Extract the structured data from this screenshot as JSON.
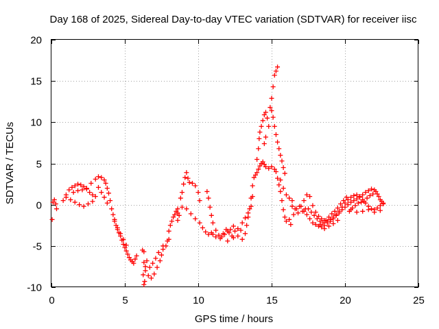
{
  "chart_data": {
    "type": "scatter",
    "title": "Day 168 of 2025, Sidereal Day-to-day VTEC variation (SDTVAR) for receiver iisc",
    "xlabel": "GPS time / hours",
    "ylabel": "SDTVAR / TECUs",
    "xlim": [
      0,
      25
    ],
    "ylim": [
      -10,
      20
    ],
    "x_ticks": [
      "0",
      "5",
      "10",
      "15",
      "20",
      "25"
    ],
    "y_ticks": [
      "-10",
      "-5",
      "0",
      "5",
      "10",
      "15",
      "20"
    ],
    "grid": true,
    "marker": "+",
    "color": "#ff0000",
    "series": [
      {
        "name": "SDTVAR",
        "points": [
          [
            0.05,
            -1.8
          ],
          [
            0.1,
            0.3
          ],
          [
            0.2,
            0.6
          ],
          [
            0.3,
            0.1
          ],
          [
            0.35,
            -0.5
          ],
          [
            0.8,
            0.5
          ],
          [
            1.0,
            1.2
          ],
          [
            1.2,
            1.8
          ],
          [
            1.4,
            2.1
          ],
          [
            1.6,
            2.3
          ],
          [
            1.8,
            2.5
          ],
          [
            2.0,
            2.4
          ],
          [
            2.2,
            2.2
          ],
          [
            2.4,
            1.9
          ],
          [
            2.6,
            1.5
          ],
          [
            2.8,
            1.2
          ],
          [
            3.0,
            1.0
          ],
          [
            1.0,
            0.9
          ],
          [
            1.3,
            0.6
          ],
          [
            1.6,
            0.3
          ],
          [
            1.9,
            0.0
          ],
          [
            2.2,
            -0.2
          ],
          [
            2.5,
            0.1
          ],
          [
            2.8,
            0.4
          ],
          [
            1.5,
            1.5
          ],
          [
            1.8,
            1.7
          ],
          [
            2.1,
            1.8
          ],
          [
            2.4,
            2.0
          ],
          [
            2.7,
            2.6
          ],
          [
            3.0,
            3.1
          ],
          [
            3.2,
            3.4
          ],
          [
            3.4,
            3.3
          ],
          [
            3.6,
            3.0
          ],
          [
            3.7,
            2.6
          ],
          [
            3.8,
            2.0
          ],
          [
            3.9,
            1.4
          ],
          [
            4.0,
            0.5
          ],
          [
            3.2,
            2.1
          ],
          [
            3.4,
            1.5
          ],
          [
            3.6,
            0.9
          ],
          [
            3.8,
            0.2
          ],
          [
            4.1,
            -0.5
          ],
          [
            4.2,
            -1.2
          ],
          [
            4.3,
            -1.8
          ],
          [
            4.4,
            -2.5
          ],
          [
            4.5,
            -3.0
          ],
          [
            4.6,
            -3.4
          ],
          [
            4.7,
            -3.8
          ],
          [
            4.8,
            -4.3
          ],
          [
            4.9,
            -4.8
          ],
          [
            5.0,
            -5.2
          ],
          [
            5.1,
            -5.6
          ],
          [
            5.2,
            -6.0
          ],
          [
            5.3,
            -6.4
          ],
          [
            5.4,
            -6.7
          ],
          [
            5.5,
            -6.9
          ],
          [
            5.6,
            -7.1
          ],
          [
            5.7,
            -6.6
          ],
          [
            5.8,
            -6.2
          ],
          [
            4.3,
            -2.0
          ],
          [
            4.5,
            -2.8
          ],
          [
            4.7,
            -3.5
          ],
          [
            4.9,
            -4.2
          ],
          [
            5.1,
            -4.9
          ],
          [
            6.2,
            -5.5
          ],
          [
            6.3,
            -5.7
          ],
          [
            6.3,
            -7.0
          ],
          [
            6.25,
            -8.5
          ],
          [
            6.3,
            -9.7
          ],
          [
            6.35,
            -9.3
          ],
          [
            6.4,
            -8.0
          ],
          [
            6.5,
            -6.8
          ],
          [
            6.4,
            -7.5
          ],
          [
            6.6,
            -8.6
          ],
          [
            6.8,
            -8.9
          ],
          [
            7.0,
            -8.4
          ],
          [
            7.2,
            -7.6
          ],
          [
            7.4,
            -6.8
          ],
          [
            7.5,
            -6.1
          ],
          [
            7.6,
            -5.4
          ],
          [
            7.8,
            -5.0
          ],
          [
            8.0,
            -4.2
          ],
          [
            6.7,
            -7.6
          ],
          [
            6.9,
            -7.1
          ],
          [
            7.1,
            -6.5
          ],
          [
            7.3,
            -5.8
          ],
          [
            7.6,
            -5.0
          ],
          [
            7.9,
            -4.4
          ],
          [
            8.0,
            -3.2
          ],
          [
            8.1,
            -2.5
          ],
          [
            8.2,
            -2.0
          ],
          [
            8.3,
            -1.5
          ],
          [
            8.4,
            -1.2
          ],
          [
            8.5,
            -0.8
          ],
          [
            8.6,
            -0.5
          ],
          [
            8.7,
            -1.3
          ],
          [
            8.6,
            -1.9
          ],
          [
            8.8,
            0.8
          ],
          [
            8.9,
            1.5
          ],
          [
            9.0,
            2.5
          ],
          [
            9.1,
            3.3
          ],
          [
            9.2,
            3.9
          ],
          [
            9.3,
            3.2
          ],
          [
            9.4,
            2.7
          ],
          [
            9.6,
            2.6
          ],
          [
            9.8,
            2.3
          ],
          [
            10.0,
            1.5
          ],
          [
            10.1,
            0.5
          ],
          [
            8.6,
            -1.0
          ],
          [
            8.9,
            -0.3
          ],
          [
            9.2,
            -0.5
          ],
          [
            9.5,
            -1.1
          ],
          [
            9.8,
            -1.7
          ],
          [
            10.1,
            -2.2
          ],
          [
            10.3,
            -2.8
          ],
          [
            10.5,
            -3.3
          ],
          [
            10.7,
            -3.6
          ],
          [
            10.9,
            -3.4
          ],
          [
            10.6,
            1.6
          ],
          [
            10.7,
            0.8
          ],
          [
            10.8,
            -0.3
          ],
          [
            10.9,
            -1.3
          ],
          [
            11.0,
            -2.2
          ],
          [
            11.2,
            -3.1
          ],
          [
            11.4,
            -3.7
          ],
          [
            11.6,
            -3.9
          ],
          [
            11.8,
            -3.6
          ],
          [
            12.0,
            -3.2
          ],
          [
            12.2,
            -3.0
          ],
          [
            12.4,
            -2.6
          ],
          [
            11.0,
            -3.6
          ],
          [
            11.2,
            -3.9
          ],
          [
            11.5,
            -4.1
          ],
          [
            11.7,
            -3.5
          ],
          [
            11.9,
            -3.0
          ],
          [
            12.1,
            -3.4
          ],
          [
            12.3,
            -3.8
          ],
          [
            12.5,
            -3.2
          ],
          [
            12.7,
            -2.9
          ],
          [
            12.9,
            -3.1
          ],
          [
            12.0,
            -4.4
          ],
          [
            12.4,
            -4.0
          ],
          [
            12.7,
            -3.8
          ],
          [
            13.0,
            -4.2
          ],
          [
            13.2,
            -3.5
          ],
          [
            13.3,
            -2.5
          ],
          [
            13.4,
            -1.5
          ],
          [
            13.5,
            -0.5
          ],
          [
            13.6,
            0.8
          ],
          [
            13.7,
            2.3
          ],
          [
            13.8,
            3.3
          ],
          [
            13.0,
            -2.2
          ],
          [
            13.2,
            -1.6
          ],
          [
            13.4,
            -1.0
          ],
          [
            13.6,
            -0.2
          ],
          [
            13.7,
            1.0
          ],
          [
            13.9,
            3.6
          ],
          [
            14.0,
            3.9
          ],
          [
            14.1,
            4.3
          ],
          [
            14.2,
            4.7
          ],
          [
            14.3,
            5.0
          ],
          [
            14.4,
            5.2
          ],
          [
            14.5,
            4.9
          ],
          [
            14.6,
            4.6
          ],
          [
            14.8,
            4.4
          ],
          [
            15.0,
            4.6
          ],
          [
            15.2,
            4.3
          ],
          [
            14.0,
            5.5
          ],
          [
            14.1,
            6.8
          ],
          [
            14.15,
            8.0
          ],
          [
            14.2,
            8.8
          ],
          [
            14.3,
            9.5
          ],
          [
            14.4,
            10.2
          ],
          [
            14.5,
            10.9
          ],
          [
            14.6,
            11.2
          ],
          [
            14.7,
            10.5
          ],
          [
            14.8,
            9.5
          ],
          [
            14.6,
            8.2
          ],
          [
            14.5,
            7.4
          ],
          [
            14.9,
            11.8
          ],
          [
            15.0,
            12.9
          ],
          [
            15.1,
            14.3
          ],
          [
            15.2,
            15.7
          ],
          [
            15.3,
            16.2
          ],
          [
            15.4,
            16.7
          ],
          [
            15.0,
            11.4
          ],
          [
            15.1,
            10.6
          ],
          [
            15.2,
            9.5
          ],
          [
            15.3,
            8.5
          ],
          [
            15.4,
            7.6
          ],
          [
            15.5,
            6.8
          ],
          [
            15.6,
            6.0
          ],
          [
            15.7,
            5.3
          ],
          [
            15.8,
            4.5
          ],
          [
            15.9,
            3.8
          ],
          [
            15.3,
            4.0
          ],
          [
            15.4,
            3.2
          ],
          [
            15.5,
            2.4
          ],
          [
            15.6,
            1.6
          ],
          [
            15.7,
            0.5
          ],
          [
            15.8,
            -0.6
          ],
          [
            15.9,
            -1.5
          ],
          [
            16.0,
            -2.0
          ],
          [
            15.6,
            3.0
          ],
          [
            15.8,
            2.0
          ],
          [
            16.0,
            1.2
          ],
          [
            16.2,
            0.8
          ],
          [
            16.4,
            0.5
          ],
          [
            16.2,
            -1.8
          ],
          [
            16.3,
            -2.4
          ],
          [
            16.5,
            -1.2
          ],
          [
            16.7,
            -0.5
          ],
          [
            16.9,
            -0.2
          ],
          [
            17.1,
            -0.8
          ],
          [
            17.3,
            -0.5
          ],
          [
            16.4,
            -0.2
          ],
          [
            16.6,
            -0.5
          ],
          [
            16.8,
            -1.0
          ],
          [
            17.0,
            -0.2
          ],
          [
            17.2,
            0.5
          ],
          [
            17.4,
            1.2
          ],
          [
            17.6,
            1.0
          ],
          [
            17.8,
            -0.1
          ],
          [
            18.0,
            -0.9
          ],
          [
            18.2,
            -1.4
          ],
          [
            18.4,
            -1.7
          ],
          [
            18.6,
            -1.9
          ],
          [
            18.8,
            -2.0
          ],
          [
            19.0,
            -1.8
          ],
          [
            19.2,
            -1.5
          ],
          [
            19.4,
            -1.2
          ],
          [
            19.6,
            -0.8
          ],
          [
            19.8,
            -0.3
          ],
          [
            20.0,
            0.2
          ],
          [
            20.2,
            0.6
          ],
          [
            20.4,
            0.9
          ],
          [
            20.6,
            1.1
          ],
          [
            20.8,
            1.2
          ],
          [
            21.0,
            1.0
          ],
          [
            21.2,
            0.6
          ],
          [
            21.4,
            0.2
          ],
          [
            21.6,
            -0.2
          ],
          [
            21.8,
            -0.5
          ],
          [
            22.0,
            -0.6
          ],
          [
            22.2,
            -0.4
          ],
          [
            22.4,
            -0.1
          ],
          [
            22.6,
            0.2
          ],
          [
            17.2,
            -0.8
          ],
          [
            17.4,
            -1.2
          ],
          [
            17.6,
            -1.7
          ],
          [
            17.8,
            -2.2
          ],
          [
            18.0,
            -2.4
          ],
          [
            18.2,
            -2.6
          ],
          [
            18.4,
            -2.7
          ],
          [
            18.6,
            -2.5
          ],
          [
            18.8,
            -2.2
          ],
          [
            19.0,
            -2.0
          ],
          [
            19.2,
            -1.7
          ],
          [
            19.4,
            -1.3
          ],
          [
            19.6,
            -1.0
          ],
          [
            19.8,
            -0.6
          ],
          [
            20.0,
            -0.3
          ],
          [
            20.2,
            0.0
          ],
          [
            20.4,
            0.3
          ],
          [
            20.6,
            0.5
          ],
          [
            20.8,
            0.7
          ],
          [
            21.0,
            0.9
          ],
          [
            21.2,
            1.2
          ],
          [
            21.4,
            1.5
          ],
          [
            21.6,
            1.7
          ],
          [
            21.8,
            1.9
          ],
          [
            22.0,
            1.8
          ],
          [
            22.2,
            1.3
          ],
          [
            22.4,
            0.6
          ],
          [
            22.6,
            0.1
          ],
          [
            17.5,
            -0.5
          ],
          [
            17.7,
            -0.9
          ],
          [
            17.9,
            -1.3
          ],
          [
            18.1,
            -1.7
          ],
          [
            18.3,
            -2.0
          ],
          [
            18.5,
            -2.2
          ],
          [
            18.7,
            -1.9
          ],
          [
            18.9,
            -1.5
          ],
          [
            19.1,
            -1.1
          ],
          [
            19.3,
            -0.8
          ],
          [
            19.5,
            -0.4
          ],
          [
            19.7,
            0.1
          ],
          [
            19.9,
            0.5
          ],
          [
            20.1,
            0.9
          ],
          [
            18.3,
            -2.4
          ],
          [
            18.6,
            -2.9
          ],
          [
            18.9,
            -2.6
          ],
          [
            19.2,
            -2.3
          ],
          [
            19.5,
            -1.9
          ],
          [
            20.3,
            -0.8
          ],
          [
            20.5,
            -0.4
          ],
          [
            20.7,
            -0.1
          ],
          [
            20.9,
            0.2
          ],
          [
            21.1,
            0.3
          ],
          [
            21.3,
            0.4
          ],
          [
            21.5,
            0.8
          ],
          [
            21.7,
            1.1
          ],
          [
            21.9,
            1.3
          ],
          [
            22.1,
            1.6
          ],
          [
            22.3,
            1.0
          ],
          [
            22.5,
            0.4
          ],
          [
            20.4,
            -0.6
          ],
          [
            20.8,
            -0.9
          ],
          [
            21.2,
            -0.8
          ],
          [
            21.6,
            -0.6
          ],
          [
            22.0,
            -0.9
          ],
          [
            22.4,
            -0.7
          ]
        ]
      }
    ]
  }
}
